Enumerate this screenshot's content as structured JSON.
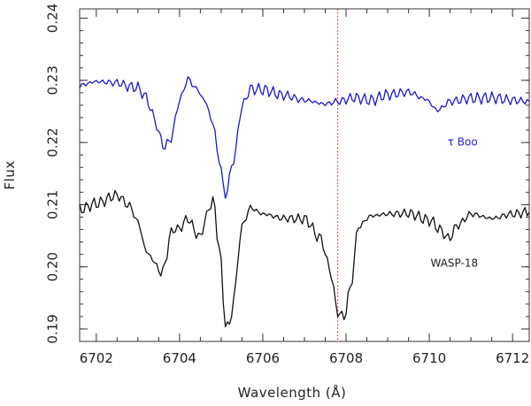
{
  "chart_data": {
    "type": "line",
    "title": "",
    "xlabel": "Wavelength (Å)",
    "ylabel": "Flux",
    "xlim": [
      6701.6,
      6712.4
    ],
    "ylim": [
      0.188,
      0.2415
    ],
    "x_ticks": [
      6702,
      6704,
      6706,
      6708,
      6710,
      6712
    ],
    "y_ticks": [
      0.19,
      0.2,
      0.21,
      0.22,
      0.23,
      0.24
    ],
    "grid": false,
    "legend": "none",
    "reference_line": {
      "x": 6707.8,
      "style": "dotted",
      "color": "#e0403a"
    },
    "annotations": [
      {
        "text": "τ Boo",
        "x": 6710.8,
        "y": 0.2195,
        "color": "#2222cc"
      },
      {
        "text": "WASP-18",
        "x": 6710.6,
        "y": 0.2,
        "color": "#222222"
      }
    ],
    "series": [
      {
        "color": "#1a1acc",
        "x": [
          6701.6,
          6702.0,
          6702.5,
          6702.8,
          6703.0,
          6703.2,
          6703.4,
          6703.55,
          6703.65,
          6703.8,
          6704.0,
          6704.2,
          6704.4,
          6704.6,
          6704.8,
          6704.95,
          6705.1,
          6705.3,
          6705.5,
          6705.7,
          6706.0,
          6706.5,
          6707.0,
          6707.5,
          6707.8,
          6708.2,
          6708.6,
          6709.0,
          6709.5,
          6709.9,
          6710.2,
          6710.5,
          6711.0,
          6711.5,
          6712.0,
          6712.4
        ],
        "y": [
          0.2292,
          0.2298,
          0.2296,
          0.229,
          0.2288,
          0.2272,
          0.2238,
          0.2205,
          0.2192,
          0.2208,
          0.2268,
          0.2302,
          0.2287,
          0.2268,
          0.2232,
          0.2172,
          0.2115,
          0.2172,
          0.2258,
          0.2286,
          0.2285,
          0.2276,
          0.2268,
          0.2262,
          0.2266,
          0.2272,
          0.2268,
          0.2277,
          0.2281,
          0.227,
          0.2252,
          0.2266,
          0.2271,
          0.2272,
          0.2268,
          0.2266
        ]
      },
      {
        "color": "#111111",
        "x": [
          6701.6,
          6702.0,
          6702.5,
          6702.8,
          6703.0,
          6703.2,
          6703.4,
          6703.55,
          6703.65,
          6703.8,
          6704.0,
          6704.2,
          6704.4,
          6704.5,
          6704.6,
          6704.8,
          6704.95,
          6705.1,
          6705.2,
          6705.3,
          6705.5,
          6705.7,
          6706.0,
          6706.5,
          6707.0,
          6707.4,
          6707.6,
          6707.8,
          6707.95,
          6708.1,
          6708.3,
          6708.6,
          6709.0,
          6709.5,
          6710.0,
          6710.3,
          6710.45,
          6710.7,
          6711.0,
          6711.5,
          6712.0,
          6712.4
        ],
        "y": [
          0.2092,
          0.2102,
          0.2115,
          0.2098,
          0.2072,
          0.2025,
          0.2008,
          0.1988,
          0.2005,
          0.2058,
          0.2062,
          0.2078,
          0.2055,
          0.2045,
          0.2075,
          0.2108,
          0.2035,
          0.1912,
          0.1902,
          0.1952,
          0.2065,
          0.2095,
          0.2085,
          0.2078,
          0.2077,
          0.2045,
          0.1998,
          0.1928,
          0.1918,
          0.1965,
          0.2065,
          0.2082,
          0.2085,
          0.2086,
          0.2075,
          0.2058,
          0.2045,
          0.2068,
          0.2085,
          0.2078,
          0.2085,
          0.2088
        ]
      }
    ]
  }
}
